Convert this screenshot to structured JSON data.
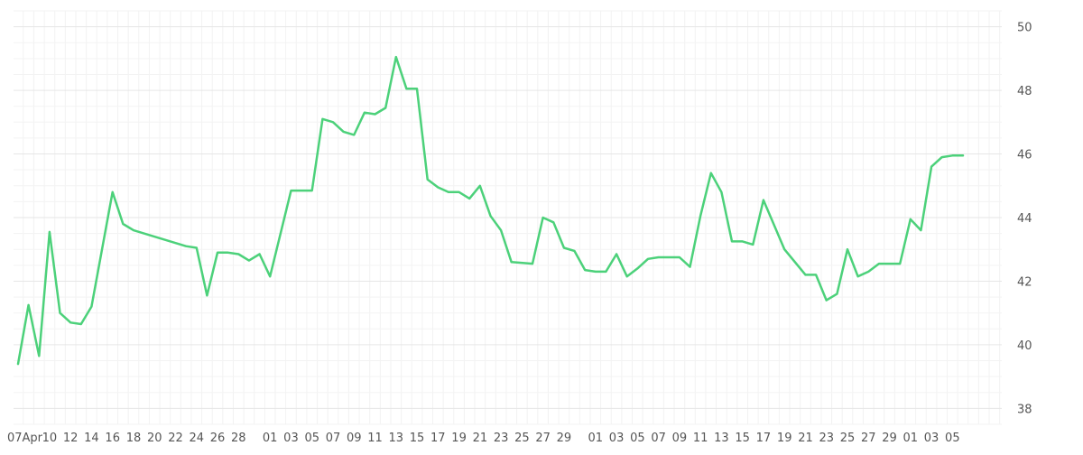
{
  "chart_data": {
    "type": "line",
    "title": "",
    "xlabel": "",
    "ylabel": "",
    "ylim": [
      37.5,
      50.5
    ],
    "y_ticks": [
      38,
      40,
      42,
      44,
      46,
      48,
      50
    ],
    "y_axis_side": "right",
    "grid": true,
    "legend": "none",
    "x_tick_labels": [
      "07Apr",
      "10",
      "12",
      "14",
      "16",
      "18",
      "20",
      "22",
      "24",
      "26",
      "28",
      "01",
      "03",
      "05",
      "07",
      "09",
      "11",
      "13",
      "15",
      "17",
      "19",
      "21",
      "23",
      "25",
      "27",
      "29",
      "01",
      "03",
      "05",
      "07",
      "09",
      "11",
      "13",
      "15",
      "17",
      "19",
      "21",
      "23",
      "25",
      "27",
      "29",
      "01",
      "03",
      "05"
    ],
    "x_tick_days": [
      0,
      3,
      5,
      7,
      9,
      11,
      13,
      15,
      17,
      19,
      21,
      24,
      26,
      28,
      30,
      32,
      34,
      36,
      38,
      40,
      42,
      44,
      46,
      48,
      50,
      52,
      55,
      57,
      59,
      61,
      63,
      65,
      67,
      69,
      71,
      73,
      75,
      77,
      79,
      81,
      83,
      85,
      87,
      89
    ],
    "series": [
      {
        "color": "#4cd17a",
        "points": [
          [
            0,
            39.4
          ],
          [
            1,
            41.25
          ],
          [
            2,
            39.65
          ],
          [
            3,
            43.55
          ],
          [
            4,
            41.0
          ],
          [
            5,
            40.7
          ],
          [
            6,
            40.65
          ],
          [
            7,
            41.2
          ],
          [
            9,
            44.8
          ],
          [
            10,
            43.8
          ],
          [
            11,
            43.6
          ],
          [
            16,
            43.1
          ],
          [
            17,
            43.05
          ],
          [
            18,
            41.55
          ],
          [
            19,
            42.9
          ],
          [
            20,
            42.9
          ],
          [
            21,
            42.85
          ],
          [
            22,
            42.65
          ],
          [
            23,
            42.85
          ],
          [
            24,
            42.15
          ],
          [
            26,
            44.85
          ],
          [
            28,
            44.85
          ],
          [
            29,
            47.1
          ],
          [
            30,
            47.0
          ],
          [
            31,
            46.7
          ],
          [
            32,
            46.6
          ],
          [
            33,
            47.3
          ],
          [
            34,
            47.25
          ],
          [
            35,
            47.45
          ],
          [
            36,
            49.05
          ],
          [
            37,
            48.05
          ],
          [
            38,
            48.05
          ],
          [
            39,
            45.2
          ],
          [
            40,
            44.95
          ],
          [
            41,
            44.8
          ],
          [
            42,
            44.8
          ],
          [
            43,
            44.6
          ],
          [
            44,
            45.0
          ],
          [
            45,
            44.05
          ],
          [
            46,
            43.6
          ],
          [
            47,
            42.6
          ],
          [
            49,
            42.55
          ],
          [
            50,
            44.0
          ],
          [
            51,
            43.85
          ],
          [
            52,
            43.05
          ],
          [
            53,
            42.95
          ],
          [
            54,
            42.35
          ],
          [
            55,
            42.3
          ],
          [
            56,
            42.3
          ],
          [
            57,
            42.85
          ],
          [
            58,
            42.15
          ],
          [
            59,
            42.4
          ],
          [
            60,
            42.7
          ],
          [
            61,
            42.75
          ],
          [
            63,
            42.75
          ],
          [
            64,
            42.45
          ],
          [
            65,
            44.05
          ],
          [
            66,
            45.4
          ],
          [
            67,
            44.8
          ],
          [
            68,
            43.25
          ],
          [
            69,
            43.25
          ],
          [
            70,
            43.15
          ],
          [
            71,
            44.55
          ],
          [
            73,
            43.0
          ],
          [
            75,
            42.2
          ],
          [
            76,
            42.2
          ],
          [
            77,
            41.4
          ],
          [
            78,
            41.6
          ],
          [
            79,
            43.0
          ],
          [
            80,
            42.15
          ],
          [
            81,
            42.3
          ],
          [
            82,
            42.55
          ],
          [
            84,
            42.55
          ],
          [
            85,
            43.95
          ],
          [
            86,
            43.6
          ],
          [
            87,
            45.6
          ],
          [
            88,
            45.9
          ],
          [
            89,
            45.95
          ],
          [
            90,
            45.95
          ]
        ]
      }
    ]
  }
}
